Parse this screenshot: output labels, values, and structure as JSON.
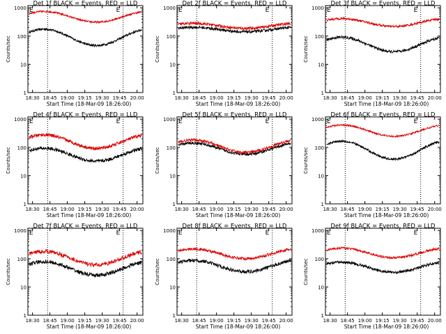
{
  "colors": {
    "events": "#000000",
    "lld": "#dd0000",
    "background": "#ffffff",
    "axes": "#000000"
  },
  "axis": {
    "ylabel": "Counts/sec",
    "xlabel": "Start Time (18-Mar-09 18:26:00)",
    "x_ticks": [
      "18:30",
      "18:45",
      "19:00",
      "19:15",
      "19:30",
      "19:45",
      "20:00"
    ],
    "y_ticks": [
      {
        "value": 1,
        "label": "1"
      },
      {
        "value": 10,
        "label": "10"
      },
      {
        "value": 100,
        "label": "100"
      },
      {
        "value": 1000,
        "label": "1000"
      }
    ],
    "y_scale": "log",
    "ylim": [
      1,
      1200
    ],
    "markers": [
      {
        "label": "E",
        "time": "18:43"
      },
      {
        "label": "E",
        "time": "19:48"
      }
    ]
  },
  "chart_data": [
    {
      "type": "line",
      "title": "Det 1f BLACK = Events, RED = LLD",
      "series": [
        {
          "name": "Events",
          "color": "#000000",
          "base": 90,
          "amp": 0.29,
          "noise": 0.04
        },
        {
          "name": "LLD",
          "color": "#dd0000",
          "base": 480,
          "amp": 0.19,
          "noise": 0.03
        }
      ]
    },
    {
      "type": "line",
      "title": "Det 2f BLACK = Events, RED = LLD",
      "series": [
        {
          "name": "Events",
          "color": "#000000",
          "base": 170,
          "amp": 0.08,
          "noise": 0.05
        },
        {
          "name": "LLD",
          "color": "#dd0000",
          "base": 230,
          "amp": 0.09,
          "noise": 0.05
        }
      ]
    },
    {
      "type": "line",
      "title": "Det 3f BLACK = Events, RED = LLD",
      "series": [
        {
          "name": "Events",
          "color": "#000000",
          "base": 50,
          "amp": 0.26,
          "noise": 0.05
        },
        {
          "name": "LLD",
          "color": "#dd0000",
          "base": 300,
          "amp": 0.14,
          "noise": 0.04
        }
      ]
    },
    {
      "type": "line",
      "title": "Det 4f BLACK = Events, RED = LLD",
      "series": [
        {
          "name": "Events",
          "color": "#000000",
          "base": 55,
          "amp": 0.23,
          "noise": 0.06
        },
        {
          "name": "LLD",
          "color": "#dd0000",
          "base": 160,
          "amp": 0.24,
          "noise": 0.06
        }
      ]
    },
    {
      "type": "line",
      "title": "Det 5f BLACK = Events, RED = LLD",
      "series": [
        {
          "name": "Events",
          "color": "#000000",
          "base": 90,
          "amp": 0.2,
          "noise": 0.05
        },
        {
          "name": "LLD",
          "color": "#dd0000",
          "base": 110,
          "amp": 0.22,
          "noise": 0.05
        }
      ]
    },
    {
      "type": "line",
      "title": "Det 6f BLACK = Events, RED = LLD",
      "series": [
        {
          "name": "Events",
          "color": "#000000",
          "base": 80,
          "amp": 0.32,
          "noise": 0.04
        },
        {
          "name": "LLD",
          "color": "#dd0000",
          "base": 390,
          "amp": 0.2,
          "noise": 0.03
        }
      ]
    },
    {
      "type": "line",
      "title": "Det 7f BLACK = Events, RED = LLD",
      "series": [
        {
          "name": "Events",
          "color": "#000000",
          "base": 45,
          "amp": 0.24,
          "noise": 0.07
        },
        {
          "name": "LLD",
          "color": "#dd0000",
          "base": 105,
          "amp": 0.24,
          "noise": 0.07
        }
      ]
    },
    {
      "type": "line",
      "title": "Det 8f BLACK = Events, RED = LLD",
      "series": [
        {
          "name": "Events",
          "color": "#000000",
          "base": 55,
          "amp": 0.2,
          "noise": 0.06
        },
        {
          "name": "LLD",
          "color": "#dd0000",
          "base": 150,
          "amp": 0.17,
          "noise": 0.05
        }
      ]
    },
    {
      "type": "line",
      "title": "Det 9f BLACK = Events, RED = LLD",
      "series": [
        {
          "name": "Events",
          "color": "#000000",
          "base": 50,
          "amp": 0.18,
          "noise": 0.05
        },
        {
          "name": "LLD",
          "color": "#dd0000",
          "base": 160,
          "amp": 0.17,
          "noise": 0.04
        }
      ]
    }
  ]
}
